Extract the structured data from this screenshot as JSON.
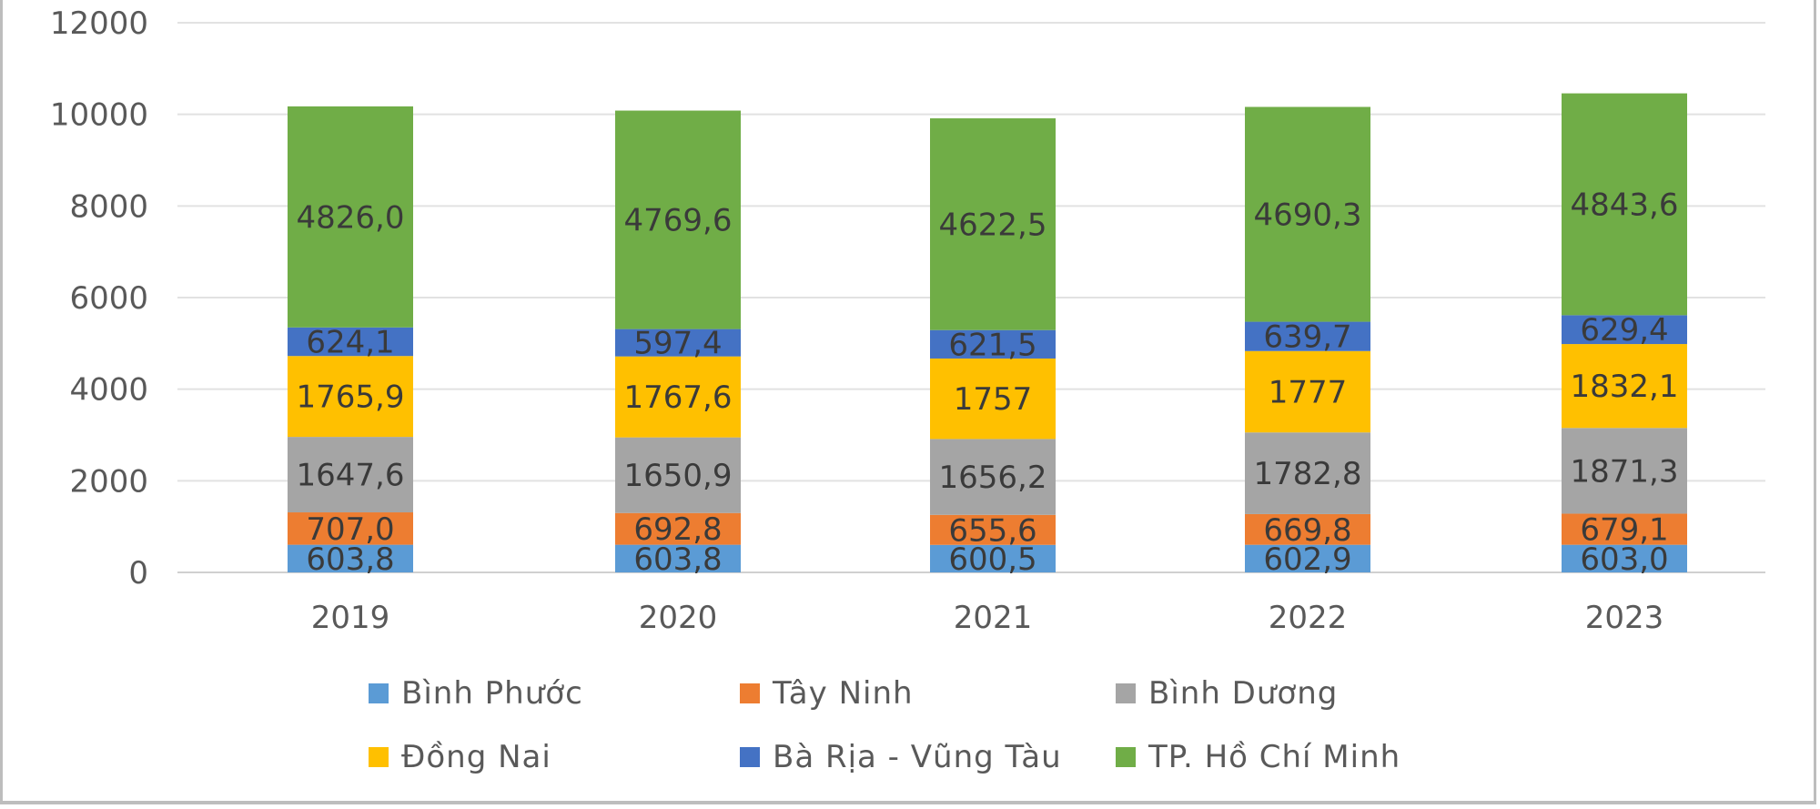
{
  "chart_data": {
    "type": "bar",
    "stacked": true,
    "categories": [
      "2019",
      "2020",
      "2021",
      "2022",
      "2023"
    ],
    "ylim": [
      0,
      12000
    ],
    "yticks": [
      "0",
      "2000",
      "4000",
      "6000",
      "8000",
      "10000",
      "12000"
    ],
    "grid": true,
    "legend_position": "bottom",
    "series": [
      {
        "name": "Bình Phước",
        "color": "#5B9BD5",
        "values": [
          603.8,
          603.8,
          600.5,
          602.9,
          603.0
        ],
        "labels": [
          "603,8",
          "603,8",
          "600,5",
          "602,9",
          "603,0"
        ]
      },
      {
        "name": "Tây Ninh",
        "color": "#ED7D31",
        "values": [
          707.0,
          692.8,
          655.6,
          669.8,
          679.1
        ],
        "labels": [
          "707,0",
          "692,8",
          "655,6",
          "669,8",
          "679,1"
        ]
      },
      {
        "name": "Bình Dương",
        "color": "#A5A5A5",
        "values": [
          1647.6,
          1650.9,
          1656.2,
          1782.8,
          1871.3
        ],
        "labels": [
          "1647,6",
          "1650,9",
          "1656,2",
          "1782,8",
          "1871,3"
        ]
      },
      {
        "name": "Đồng Nai",
        "color": "#FFC000",
        "values": [
          1765.9,
          1767.6,
          1757,
          1777,
          1832.1
        ],
        "labels": [
          "1765,9",
          "1767,6",
          "1757",
          "1777",
          "1832,1"
        ]
      },
      {
        "name": "Bà Rịa - Vũng Tàu",
        "color": "#4472C4",
        "values": [
          624.1,
          597.4,
          621.5,
          639.7,
          629.4
        ],
        "labels": [
          "624,1",
          "597,4",
          "621,5",
          "639,7",
          "629,4"
        ]
      },
      {
        "name": "TP. Hồ Chí Minh",
        "color": "#70AD47",
        "values": [
          4826.0,
          4769.6,
          4622.5,
          4690.3,
          4843.6
        ],
        "labels": [
          "4826,0",
          "4769,6",
          "4622,5",
          "4690,3",
          "4843,6"
        ]
      }
    ]
  }
}
